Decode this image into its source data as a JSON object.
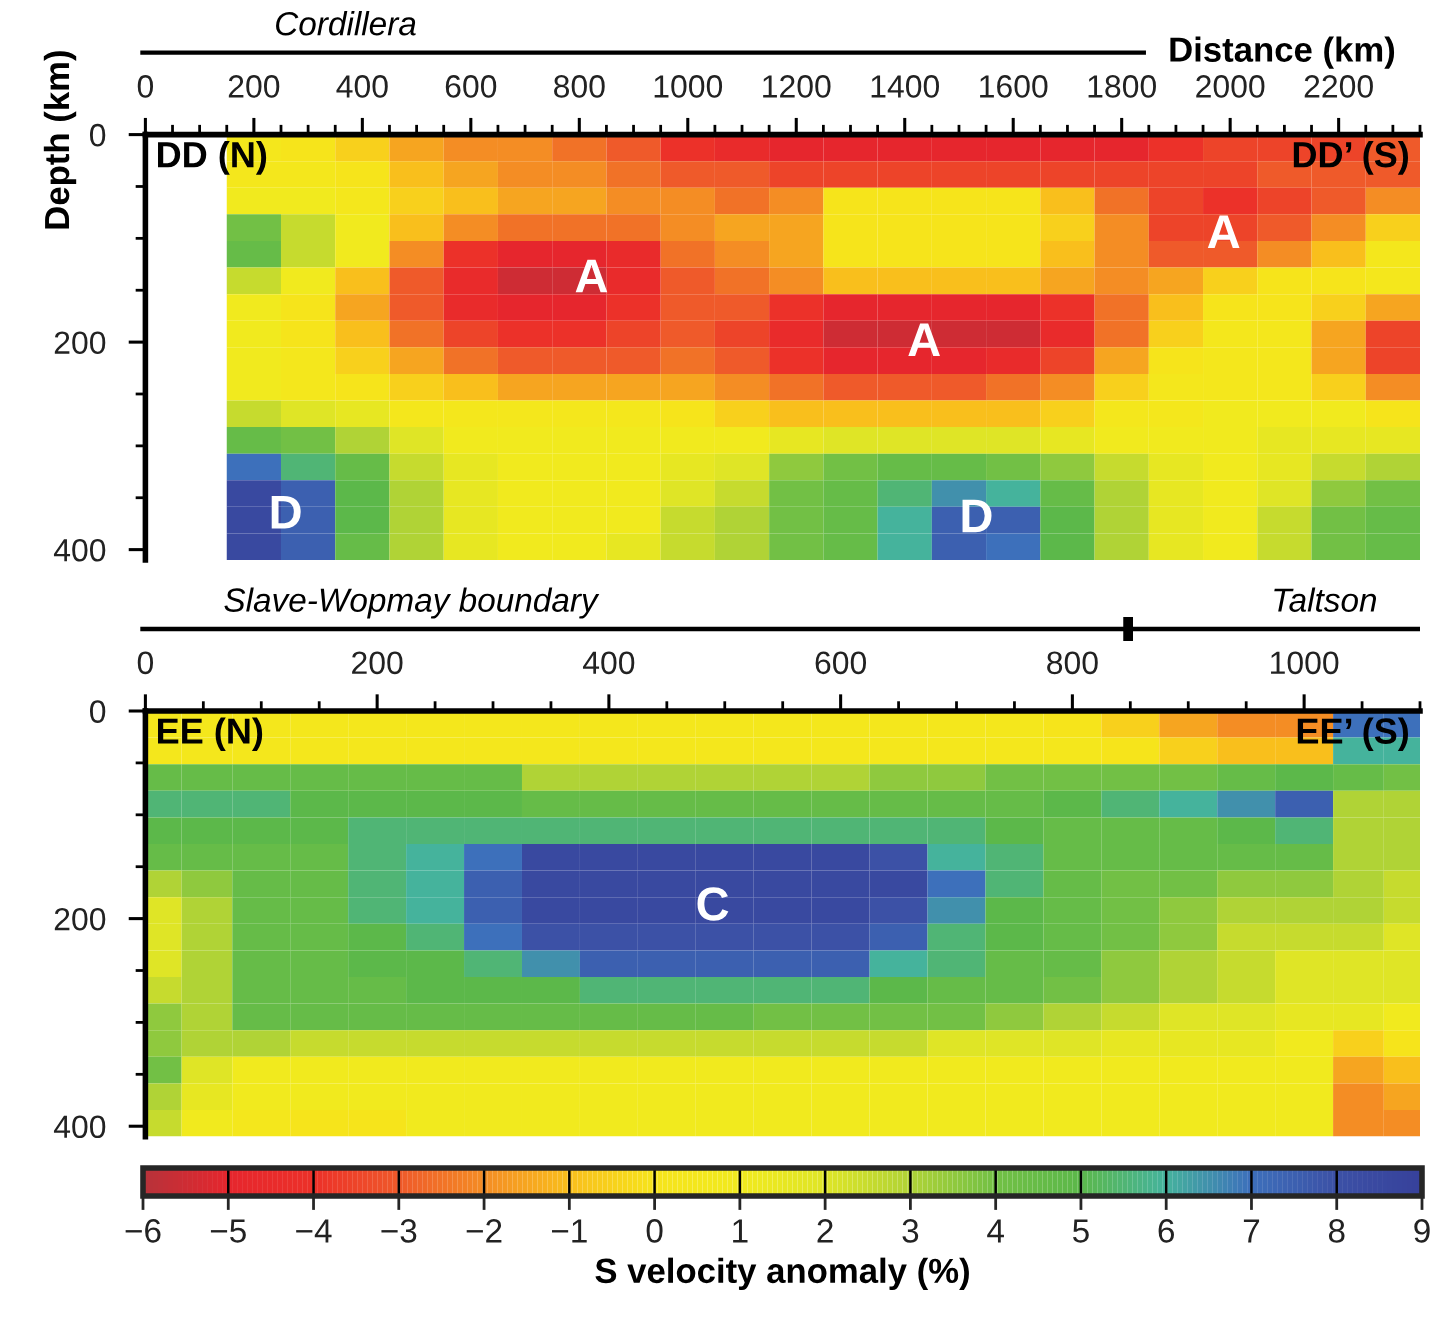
{
  "chart_data": [
    {
      "type": "heatmap",
      "xlabel": "Distance (km)",
      "ylabel": "Depth (km)",
      "x": [
        200,
        300,
        400,
        500,
        600,
        700,
        800,
        900,
        1000,
        1100,
        1200,
        1300,
        1400,
        1500,
        1600,
        1700,
        1800,
        1900,
        2000,
        2100,
        2200,
        2300
      ],
      "cells": [
        [
          0.5,
          0,
          -0.5,
          -1.5,
          -2,
          -2,
          -2.5,
          -3,
          -4,
          -4.5,
          -5,
          -5,
          -5,
          -5,
          -5,
          -5,
          -5,
          -4,
          -3.5,
          -3.5,
          -3.5,
          -3
        ],
        [
          0.5,
          0.5,
          0,
          -1,
          -1.5,
          -2,
          -2,
          -2.5,
          -3,
          -3,
          -3.5,
          -3.5,
          -3.5,
          -3.5,
          -3.5,
          -3.5,
          -3.5,
          -3.5,
          -3.5,
          -3,
          -3,
          -3
        ],
        [
          1,
          1,
          0.5,
          -0.5,
          -1,
          -1.5,
          -1.5,
          -2,
          -2,
          -2.5,
          -2,
          0,
          0,
          0,
          0,
          -1,
          -2.5,
          -3.5,
          -4,
          -3.5,
          -3,
          -2
        ],
        [
          4,
          2.5,
          1,
          -1,
          -2,
          -2.5,
          -2.5,
          -2.5,
          -2,
          -1.5,
          -1.5,
          0,
          0,
          0,
          0,
          -0.5,
          -2,
          -3.5,
          -3.5,
          -3,
          -2,
          -0.5
        ],
        [
          4.5,
          2.5,
          1,
          -2,
          -4,
          -5,
          -5,
          -4.5,
          -2.5,
          -2,
          -1.5,
          0,
          0,
          0,
          0,
          -1,
          -2,
          -3,
          -3,
          -2,
          -1,
          0.5
        ],
        [
          2.5,
          1,
          -1,
          -3,
          -4.5,
          -5.5,
          -5.5,
          -4.5,
          -3,
          -2.5,
          -2,
          -1,
          -1,
          -1,
          -1,
          -1.5,
          -2,
          -1.5,
          -0.5,
          0,
          0,
          0.5
        ],
        [
          1,
          0,
          -1.5,
          -3,
          -4.5,
          -5,
          -5,
          -4,
          -3,
          -3,
          -4,
          -5,
          -5,
          -5,
          -5,
          -4,
          -2.5,
          -1,
          0,
          0,
          -0.5,
          -1.5
        ],
        [
          1,
          0,
          -1,
          -2.5,
          -3.5,
          -4,
          -4,
          -3.5,
          -3,
          -3.5,
          -4.5,
          -5.5,
          -5.5,
          -5.5,
          -5.5,
          -4.5,
          -2.5,
          -0.5,
          0.5,
          0.5,
          -1.5,
          -3.5
        ],
        [
          1,
          0.5,
          -0.5,
          -1.5,
          -2.5,
          -3,
          -3,
          -3,
          -2.5,
          -3,
          -4,
          -5,
          -5,
          -5,
          -4.5,
          -3.5,
          -1.5,
          0,
          0.5,
          0.5,
          -1.5,
          -3.5
        ],
        [
          1,
          0.5,
          0,
          -0.5,
          -1,
          -1.5,
          -1.5,
          -1.5,
          -1.5,
          -2,
          -2.5,
          -3,
          -3,
          -3,
          -2.5,
          -2,
          -0.5,
          0.5,
          0.5,
          0.5,
          -0.5,
          -2
        ],
        [
          2.5,
          2,
          1.5,
          0.5,
          0.5,
          0.5,
          0.5,
          0.5,
          0,
          -0.5,
          -1,
          -1,
          -1,
          -1,
          -1,
          -0.5,
          0.5,
          0.5,
          1,
          1,
          1,
          0
        ],
        [
          4.5,
          4,
          3,
          2,
          1,
          1,
          1,
          1,
          1,
          1,
          1.5,
          2,
          2,
          2,
          2,
          1.5,
          1,
          1,
          1,
          1.5,
          1.5,
          1.5
        ],
        [
          7,
          5.5,
          4.5,
          2.5,
          1.5,
          1,
          1,
          1,
          1.5,
          2,
          3.5,
          4,
          4.5,
          4.5,
          4,
          3.5,
          2.5,
          1.5,
          1,
          1.5,
          2.5,
          3
        ],
        [
          8.5,
          7.5,
          5,
          3,
          1.5,
          1,
          1,
          1,
          2,
          2.5,
          4,
          4.5,
          5.5,
          6.5,
          6,
          4.5,
          3,
          1.5,
          1,
          2,
          3.5,
          4
        ],
        [
          8.5,
          7.5,
          5,
          3,
          1.5,
          1,
          1,
          1,
          2.5,
          3,
          4,
          4.5,
          6,
          7.5,
          7.5,
          5,
          3,
          1.5,
          1,
          2.5,
          4,
          4.5
        ],
        [
          8.5,
          7.5,
          4.5,
          3,
          1.5,
          1,
          1,
          1.5,
          2.5,
          3,
          4,
          4.5,
          6,
          7.5,
          7,
          5,
          3,
          1.5,
          1,
          2.5,
          4,
          4.5
        ]
      ],
      "clim": [
        -6,
        9
      ],
      "cticks": [
        {
          "value": -6,
          "label": "−6"
        },
        {
          "value": -4,
          "label": "−4"
        },
        {
          "value": -2,
          "label": "−2"
        },
        0,
        2,
        4,
        6,
        8
      ],
      "xlim": [
        0,
        2350
      ],
      "xticks": [
        0,
        {
          "value": 50,
          "label": null
        },
        {
          "value": 100,
          "label": null
        },
        {
          "value": 150,
          "label": null
        },
        200,
        {
          "value": 250,
          "label": null
        },
        {
          "value": 300,
          "label": null
        },
        {
          "value": 350,
          "label": null
        },
        400,
        {
          "value": 450,
          "label": null
        },
        {
          "value": 500,
          "label": null
        },
        {
          "value": 550,
          "label": null
        },
        600,
        {
          "value": 650,
          "label": null
        },
        {
          "value": 700,
          "label": null
        },
        {
          "value": 750,
          "label": null
        },
        800,
        {
          "value": 850,
          "label": null
        },
        {
          "value": 900,
          "label": null
        },
        {
          "value": 950,
          "label": null
        },
        1000,
        {
          "value": 1050,
          "label": null
        },
        {
          "value": 1100,
          "label": null
        },
        {
          "value": 1150,
          "label": null
        },
        1200,
        {
          "value": 1250,
          "label": null
        },
        {
          "value": 1300,
          "label": null
        },
        {
          "value": 1350,
          "label": null
        },
        1400,
        {
          "value": 1450,
          "label": null
        },
        {
          "value": 1500,
          "label": null
        },
        {
          "value": 1550,
          "label": null
        },
        1600,
        {
          "value": 1650,
          "label": null
        },
        {
          "value": 1700,
          "label": null
        },
        {
          "value": 1750,
          "label": null
        },
        1800,
        {
          "value": 1850,
          "label": null
        },
        {
          "value": 1900,
          "label": null
        },
        {
          "value": 1950,
          "label": null
        },
        2000,
        {
          "value": 2050,
          "label": null
        },
        {
          "value": 2100,
          "label": null
        },
        {
          "value": 2150,
          "label": null
        },
        2200,
        {
          "value": 2250,
          "label": null
        },
        {
          "value": 2300,
          "label": null
        },
        {
          "value": 2350,
          "label": null
        }
      ],
      "ylim": [
        410,
        0
      ],
      "yticks": [
        0,
        {
          "value": 50,
          "label": null
        },
        {
          "value": 100,
          "label": null
        },
        {
          "value": 150,
          "label": null
        },
        200,
        {
          "value": 250,
          "label": null
        },
        {
          "value": 300,
          "label": null
        },
        {
          "value": 350,
          "label": null
        },
        400
      ],
      "annotations": [
        "Cordillera",
        "DD (N)",
        "DD’ (S)",
        "A",
        "A",
        "A",
        "D",
        "D"
      ]
    },
    {
      "type": "heatmap",
      "x": [
        12.5,
        50,
        100,
        150,
        200,
        250,
        300,
        350,
        400,
        450,
        500,
        550,
        600,
        650,
        700,
        750,
        800,
        850,
        900,
        950,
        1000,
        1050,
        1087.5
      ],
      "cells": [
        [
          0.5,
          0.5,
          0.5,
          0.5,
          0.5,
          0.5,
          0.5,
          0.5,
          0.5,
          0.5,
          0.5,
          0.5,
          0.5,
          0.5,
          0.5,
          0.5,
          0,
          -0.5,
          -1.5,
          -2,
          -2,
          7,
          7
        ],
        [
          0.5,
          0.5,
          0.5,
          0.5,
          0.5,
          0.5,
          0.5,
          0.5,
          0.5,
          0.5,
          0.5,
          0.5,
          0.5,
          0.5,
          0.5,
          0.5,
          0.5,
          0,
          -0.5,
          -1,
          -1,
          6,
          6
        ],
        [
          4.5,
          4.5,
          4.5,
          4.5,
          4.5,
          4.5,
          4.5,
          3,
          3,
          3,
          3,
          3,
          3,
          3.5,
          3.5,
          4,
          4,
          4,
          4,
          4.5,
          5,
          4.5,
          4
        ],
        [
          5.5,
          5.5,
          5.5,
          5,
          5,
          5,
          5,
          4.5,
          4.5,
          4.5,
          4.5,
          4.5,
          4.5,
          4.5,
          4.5,
          4.5,
          5,
          5.5,
          6,
          6.5,
          7.5,
          3,
          3
        ],
        [
          5,
          5,
          5,
          5,
          5.5,
          5.5,
          5.5,
          5.5,
          5.5,
          5.5,
          5.5,
          5.5,
          5.5,
          5.5,
          5.5,
          5,
          4.5,
          4.5,
          4.5,
          5,
          5.5,
          3,
          3
        ],
        [
          4.5,
          4.5,
          4.5,
          4.5,
          5.5,
          6,
          7,
          8.5,
          8.5,
          8.5,
          8.5,
          8.5,
          8.5,
          8,
          6,
          5.5,
          4.5,
          4.5,
          4.5,
          4.5,
          4.5,
          3,
          3
        ],
        [
          3,
          3.5,
          4.5,
          4.5,
          5.5,
          6,
          7.5,
          8.5,
          8.5,
          8.5,
          8.5,
          8.5,
          8.5,
          8.5,
          7,
          5.5,
          4.5,
          4,
          4,
          3.5,
          3.5,
          3,
          2.5
        ],
        [
          2,
          3,
          4.5,
          4.5,
          5.5,
          6,
          7.5,
          8.5,
          8.5,
          8.5,
          8.5,
          8.5,
          8.5,
          8,
          6.5,
          5,
          4.5,
          4,
          3.5,
          3,
          3,
          3,
          2.5
        ],
        [
          2,
          3,
          4.5,
          4.5,
          5,
          5.5,
          7,
          8,
          8,
          8,
          8,
          8,
          8,
          7.5,
          5.5,
          5,
          4.5,
          4,
          3.5,
          2.5,
          2.5,
          2.5,
          2
        ],
        [
          2,
          3,
          4.5,
          4.5,
          5,
          5,
          5.5,
          6.5,
          7.5,
          7.5,
          7.5,
          7.5,
          7.5,
          6,
          5.5,
          4.5,
          4.5,
          3.5,
          3,
          2.5,
          2,
          2,
          2
        ],
        [
          2.5,
          3,
          4.5,
          4.5,
          4.5,
          5,
          5,
          5,
          5.5,
          5.5,
          5.5,
          5.5,
          5.5,
          5,
          4.5,
          4.5,
          4,
          3.5,
          3,
          2.5,
          2,
          2,
          2
        ],
        [
          3.5,
          3,
          4.5,
          4.5,
          4.5,
          4.5,
          4.5,
          4.5,
          4.5,
          4.5,
          4.5,
          4,
          4,
          4,
          4,
          3.5,
          3,
          2.5,
          2,
          2,
          1.5,
          1.5,
          1
        ],
        [
          3.5,
          3,
          3,
          2.5,
          2.5,
          2.5,
          2.5,
          2.5,
          2.5,
          2.5,
          2.5,
          2.5,
          2.5,
          2.5,
          2,
          2,
          2,
          1.5,
          1.5,
          1.5,
          1,
          -0.5,
          0
        ],
        [
          4,
          2,
          1,
          1,
          1,
          1,
          1,
          1,
          1,
          1,
          1,
          1,
          1,
          1,
          1,
          1,
          1,
          1,
          1,
          1,
          1,
          -1.5,
          -1
        ],
        [
          3,
          1.5,
          1,
          1,
          1,
          1,
          1,
          1,
          1,
          1,
          1,
          1,
          1,
          1,
          1,
          1,
          1,
          1,
          1,
          1,
          1,
          -2,
          -1.5
        ],
        [
          2.5,
          1,
          0.5,
          0,
          0,
          1,
          1,
          1,
          1,
          1,
          1,
          1,
          1,
          1,
          1,
          1,
          1,
          1,
          1,
          1,
          1,
          -2,
          -2
        ]
      ],
      "clim": [
        -6,
        9
      ],
      "cticks": [
        {
          "value": -5,
          "label": "−5"
        },
        {
          "value": -3,
          "label": "−3"
        },
        {
          "value": -1,
          "label": "−1"
        },
        1,
        3,
        5,
        7,
        9
      ],
      "clabel": "S velocity anomaly (%)",
      "xlim": [
        0,
        1100
      ],
      "xticks": [
        0,
        {
          "value": 50,
          "label": null
        },
        {
          "value": 100,
          "label": null
        },
        {
          "value": 150,
          "label": null
        },
        200,
        {
          "value": 250,
          "label": null
        },
        {
          "value": 300,
          "label": null
        },
        {
          "value": 350,
          "label": null
        },
        400,
        {
          "value": 450,
          "label": null
        },
        {
          "value": 500,
          "label": null
        },
        {
          "value": 550,
          "label": null
        },
        600,
        {
          "value": 650,
          "label": null
        },
        {
          "value": 700,
          "label": null
        },
        {
          "value": 750,
          "label": null
        },
        800,
        {
          "value": 850,
          "label": null
        },
        {
          "value": 900,
          "label": null
        },
        {
          "value": 950,
          "label": null
        },
        1000,
        {
          "value": 1050,
          "label": null
        },
        {
          "value": 1100,
          "label": null
        }
      ],
      "ylim": [
        410,
        0
      ],
      "yticks": [
        0,
        {
          "value": 50,
          "label": null
        },
        {
          "value": 100,
          "label": null
        },
        {
          "value": 150,
          "label": null
        },
        200,
        {
          "value": 250,
          "label": null
        },
        {
          "value": 300,
          "label": null
        },
        {
          "value": 350,
          "label": null
        },
        400
      ],
      "annotations": [
        "Slave-Wopmay boundary",
        "Taltson",
        "EE (N)",
        "EE’ (S)",
        "C"
      ]
    }
  ]
}
